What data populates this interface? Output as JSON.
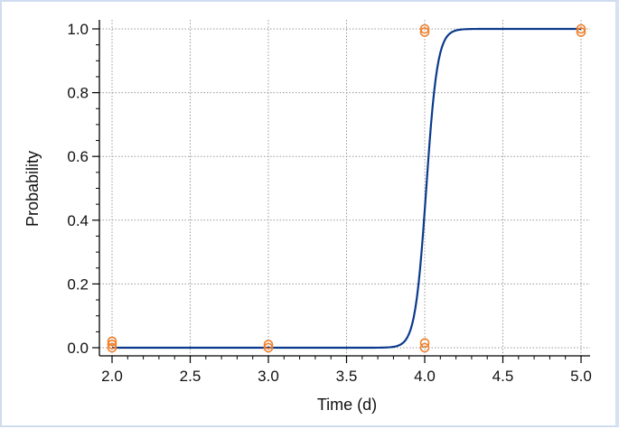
{
  "chart_data": {
    "type": "scatter",
    "xlabel": "Time (d)",
    "ylabel": "Probability",
    "xlim": [
      2.0,
      5.0
    ],
    "ylim": [
      0.0,
      1.0
    ],
    "xticks": [
      "2.0",
      "2.5",
      "3.0",
      "3.5",
      "4.0",
      "4.5",
      "5.0"
    ],
    "yticks": [
      "0.0",
      "0.2",
      "0.4",
      "0.6",
      "0.8",
      "1.0"
    ],
    "grid": true,
    "curve": {
      "type": "logistic",
      "midpoint": 4.01,
      "steepness": 28
    },
    "points": {
      "x": [
        2.0,
        2.0,
        2.0,
        3.0,
        3.0,
        4.0,
        4.0,
        4.0,
        4.0,
        5.0,
        5.0
      ],
      "y": [
        0.0,
        0.01,
        0.02,
        0.0,
        0.01,
        0.0,
        0.015,
        0.99,
        1.0,
        0.99,
        1.0
      ]
    },
    "colors": {
      "curve": "#0b3a8c",
      "points": "#f07f2a",
      "grid": "#9a9a9a"
    }
  }
}
